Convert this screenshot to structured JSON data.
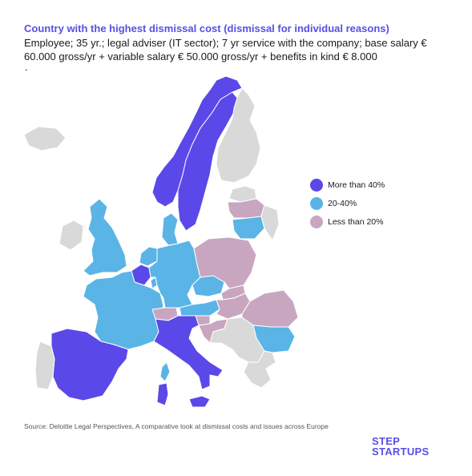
{
  "title": "Country with the highest dismissal cost (dismissal for individual reasons)",
  "subtitle": "Employee; 35 yr.; legal adviser (IT sector); 7 yr service with the company; base salary € 60.000 gross/yr + variable salary € 50.000 gross/yr + benefits in kind € 8.000",
  "trailing_mark": ".",
  "legend": [
    {
      "label": "More than 40%",
      "color": "#5b48e8"
    },
    {
      "label": "20-40%",
      "color": "#5ab4e6"
    },
    {
      "label": "Less than 20%",
      "color": "#c8a6c0"
    }
  ],
  "no_data_color": "#d9d9d9",
  "source": "Source: Deloitte Legal Perspectives, A comparative look at dismissal costs and issues across Europe",
  "logo": {
    "line1": "STEP",
    "line2": "STARTUPS"
  },
  "regions": [
    {
      "id": "norway",
      "category": "more"
    },
    {
      "id": "sweden",
      "category": "more"
    },
    {
      "id": "finland",
      "category": "none"
    },
    {
      "id": "iceland",
      "category": "none"
    },
    {
      "id": "uk",
      "category": "mid"
    },
    {
      "id": "ireland",
      "category": "none"
    },
    {
      "id": "denmark",
      "category": "mid"
    },
    {
      "id": "netherlands",
      "category": "mid"
    },
    {
      "id": "belgium",
      "category": "more"
    },
    {
      "id": "luxembourg",
      "category": "mid"
    },
    {
      "id": "france",
      "category": "mid"
    },
    {
      "id": "germany",
      "category": "mid"
    },
    {
      "id": "switzerland",
      "category": "less"
    },
    {
      "id": "austria",
      "category": "mid"
    },
    {
      "id": "czechia",
      "category": "mid"
    },
    {
      "id": "poland",
      "category": "less"
    },
    {
      "id": "lithuania",
      "category": "mid"
    },
    {
      "id": "latvia",
      "category": "less"
    },
    {
      "id": "estonia",
      "category": "none"
    },
    {
      "id": "slovakia",
      "category": "less"
    },
    {
      "id": "hungary",
      "category": "less"
    },
    {
      "id": "romania",
      "category": "less"
    },
    {
      "id": "bulgaria",
      "category": "mid"
    },
    {
      "id": "slovenia",
      "category": "less"
    },
    {
      "id": "croatia",
      "category": "less"
    },
    {
      "id": "balkans",
      "category": "none"
    },
    {
      "id": "greece",
      "category": "none"
    },
    {
      "id": "spain",
      "category": "more"
    },
    {
      "id": "portugal",
      "category": "none"
    },
    {
      "id": "italy",
      "category": "more"
    },
    {
      "id": "sardinia",
      "category": "more"
    },
    {
      "id": "corsica",
      "category": "mid"
    },
    {
      "id": "sicily",
      "category": "more"
    },
    {
      "id": "belarus-ukraine",
      "category": "none"
    }
  ]
}
